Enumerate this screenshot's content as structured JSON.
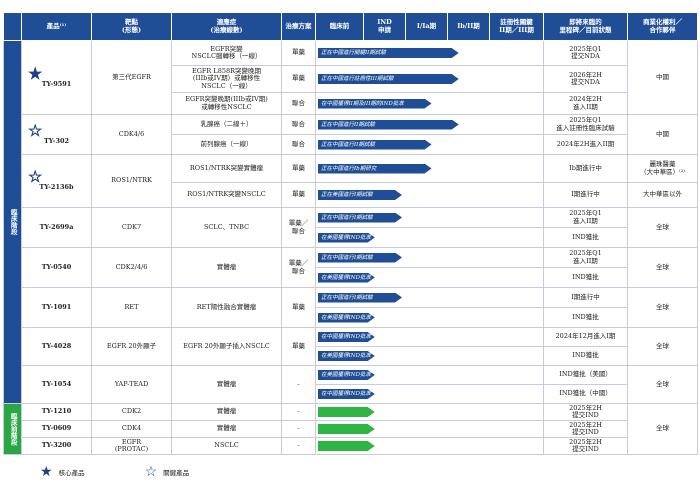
{
  "headers": [
    "產品⁽¹⁾",
    "靶點\n(形態)",
    "適應症\n(治療線數)",
    "治療方案",
    "臨床前",
    "IND\n申請",
    "I/Ia期",
    "Ib/II期",
    "註冊性關鍵\nII期／III期",
    "即將來臨的\n里程碑／目前狀態",
    "商業化權利／\n合作夥伴"
  ],
  "stages": {
    "clinical": "臨床階段",
    "ind": "臨床前階段"
  },
  "products": {
    "ty9591": "TY-9591",
    "ty302": "TY-302",
    "ty2136b": "TY-2136b",
    "ty2699a": "TY-2699a",
    "ty0540": "TY-0540",
    "ty1091": "TY-1091",
    "ty4028": "TY-4028",
    "ty1054": "TY-1054",
    "ty1210": "TY-1210",
    "ty0609": "TY-0609",
    "ty3200": "TY-3200"
  },
  "targets": {
    "ty9591": "第三代EGFR",
    "ty302": "CDK4/6",
    "ty2136b": "ROS1/NTRK",
    "ty2699a": "CDK7",
    "ty0540": "CDK2/4/6",
    "ty1091": "RET",
    "ty4028": "EGFR 20外顯子",
    "ty1054": "YAP-TEAD",
    "ty1210": "CDK2",
    "ty0609": "CDK4",
    "ty3200": "EGFR\n(PROTAC)"
  },
  "rows": [
    {
      "ind": "EGFR突變\nNSCLC腦轉移（一線）",
      "reg": "單藥",
      "bar": "正在中國進行關鍵II期試驗",
      "ms": "2025年Q1\n提交NDA"
    },
    {
      "ind": "EGFR L858R突變晚期\n(IIIb或IV期）或轉移性\nNSCLC（一線）",
      "reg": "單藥",
      "bar": "正在中國進行註冊性III期試驗",
      "ms": "2026年2H\n提交NDA"
    },
    {
      "ind": "EGFR突變晚期(IIIb或IV期)\n或轉移性NSCLC",
      "reg": "聯合",
      "bar": "在中國獲得II期及III期的IND批准",
      "ms": "2024年2H\n進入II期"
    },
    {
      "ind": "乳腺癌（二線＋）",
      "reg": "聯合",
      "bar": "正在中國進行II期試驗",
      "ms": "2025年Q1\n進入註冊性臨床試驗"
    },
    {
      "ind": "前列腺癌（一線）",
      "reg": "聯合",
      "bar": "正在中國進行II期試驗",
      "ms": "2024年2H進入II期"
    },
    {
      "ind": "ROS1/NTRK突變實體瘤",
      "reg": "單藥",
      "bar": "正在中國進行Ib期研究",
      "ms": "Ib期進行中"
    },
    {
      "ind": "ROS1/NTRK突變NSCLC",
      "reg": "單藥",
      "bar": "正在美國進行I期試驗",
      "ms": "I期進行中"
    },
    {
      "ind": "SCLC、TNBC",
      "reg": "單藥／\n聯合",
      "bar": "正在中國進行I期試驗",
      "ms": "2025年Q1\n進入II期"
    },
    {
      "ind": "",
      "reg": "",
      "bar": "在美國獲得IND批准",
      "ms": "IND獲批"
    },
    {
      "ind": "實體瘤",
      "reg": "單藥／\n聯合",
      "bar": "正在中國進行I期試驗",
      "ms": "2025年Q1\n進入II期"
    },
    {
      "ind": "",
      "reg": "",
      "bar": "在美國獲得IND批准",
      "ms": "IND獲批"
    },
    {
      "ind": "RET陽性融合實體瘤",
      "reg": "單藥",
      "bar": "正在中國進行I期試驗",
      "ms": "I期進行中"
    },
    {
      "ind": "",
      "reg": "",
      "bar": "在美國獲得IND批准",
      "ms": "IND獲批"
    },
    {
      "ind": "EGFR 20外顯子插入NSCLC",
      "reg": "單藥",
      "bar": "在中國獲得IND批准",
      "ms": "2024年12月進入I期"
    },
    {
      "ind": "",
      "reg": "",
      "bar": "在美國獲得IND批准",
      "ms": "IND獲批"
    },
    {
      "ind": "實體瘤",
      "reg": "-",
      "bar": "在美國獲得IND批准",
      "ms": "IND獲批（美國）"
    },
    {
      "ind": "",
      "reg": "",
      "bar": "在中國獲得IND批准",
      "ms": "IND獲批（中國）"
    },
    {
      "ind": "實體瘤",
      "reg": "-",
      "bar": "",
      "ms": "2025年2H\n提交IND"
    },
    {
      "ind": "實體瘤",
      "reg": "-",
      "bar": "",
      "ms": "2025年2H\n提交IND"
    },
    {
      "ind": "NSCLC",
      "reg": "-",
      "bar": "",
      "ms": "2025年2H\n提交IND"
    }
  ],
  "rights": {
    "ty9591": "中國",
    "ty302": "中國",
    "ty2136b_a": "麗珠醫藥\n（大中華區）⁽²⁾",
    "ty2136b_b": "大中華區以外",
    "ty2699a": "全球",
    "ty0540": "全球",
    "ty1091": "全球",
    "ty4028": "全球",
    "ty1054": "全球",
    "preclin": "全球"
  },
  "bar_progress": [
    0.62,
    0.62,
    0.5,
    0.62,
    0.5,
    0.5,
    0.37,
    0.37,
    0.25,
    0.37,
    0.25,
    0.37,
    0.25,
    0.25,
    0.25,
    0.25,
    0.25,
    0.25,
    0.25,
    0.25
  ],
  "legend": {
    "core": "核心產品",
    "key": "關鍵產品"
  },
  "colors": {
    "header_blue": "#1f4e96",
    "bar_blue": "#1f4e96",
    "bar_green": "#2fb544",
    "stage_green": "#29a745"
  }
}
